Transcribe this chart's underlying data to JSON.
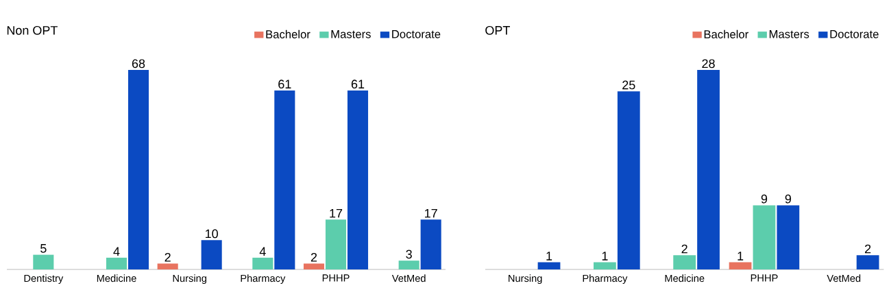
{
  "chart_data": [
    {
      "type": "bar",
      "title": "Non OPT",
      "categories": [
        "Dentistry",
        "Medicine",
        "Nursing",
        "Pharmacy",
        "PHHP",
        "VetMed"
      ],
      "series": [
        {
          "name": "Bachelor",
          "color": "#e8735f",
          "values": [
            null,
            null,
            2,
            null,
            2,
            null
          ]
        },
        {
          "name": "Masters",
          "color": "#5ccdac",
          "values": [
            5,
            4,
            null,
            4,
            17,
            3
          ]
        },
        {
          "name": "Doctorate",
          "color": "#0b4ac2",
          "values": [
            null,
            68,
            10,
            61,
            61,
            17
          ]
        }
      ],
      "data_labels": true,
      "legend": "top right"
    },
    {
      "type": "bar",
      "title": "OPT",
      "categories": [
        "Nursing",
        "Pharmacy",
        "Medicine",
        "PHHP",
        "VetMed"
      ],
      "series": [
        {
          "name": "Bachelor",
          "color": "#e8735f",
          "values": [
            null,
            null,
            null,
            1,
            null
          ]
        },
        {
          "name": "Masters",
          "color": "#5ccdac",
          "values": [
            null,
            1,
            2,
            9,
            null
          ]
        },
        {
          "name": "Doctorate",
          "color": "#0b4ac2",
          "values": [
            1,
            25,
            28,
            9,
            2
          ]
        }
      ],
      "data_labels": true,
      "legend": "top right"
    }
  ]
}
